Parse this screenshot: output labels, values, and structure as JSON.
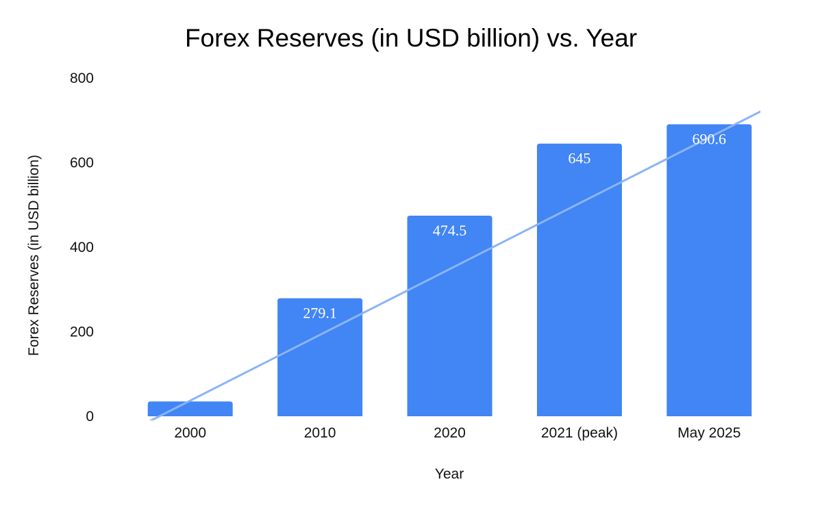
{
  "colors": {
    "bar": "#4285f4",
    "trendline": "#8ab4f8",
    "data_label": "#ffffff",
    "text": "#111111",
    "background": "#ffffff"
  },
  "chart_data": {
    "type": "bar",
    "title": "Forex Reserves (in USD billion) vs. Year",
    "xlabel": "Year",
    "ylabel": "Forex Reserves (in USD billion)",
    "categories": [
      "2000",
      "2010",
      "2020",
      "2021 (peak)",
      "May 2025"
    ],
    "values": [
      35,
      279.1,
      474.5,
      645,
      690.6
    ],
    "data_labels": [
      "",
      "279.1",
      "474.5",
      "645",
      "690.6"
    ],
    "ylim": [
      0,
      800
    ],
    "yticks": [
      0,
      200,
      400,
      600,
      800
    ],
    "ytick_labels": [
      "0",
      "200",
      "400",
      "600",
      "800"
    ],
    "grid": false,
    "legend": "none",
    "trendline": {
      "type": "linear",
      "y_at_first_category": 37,
      "slope_per_category": 155.6
    }
  }
}
